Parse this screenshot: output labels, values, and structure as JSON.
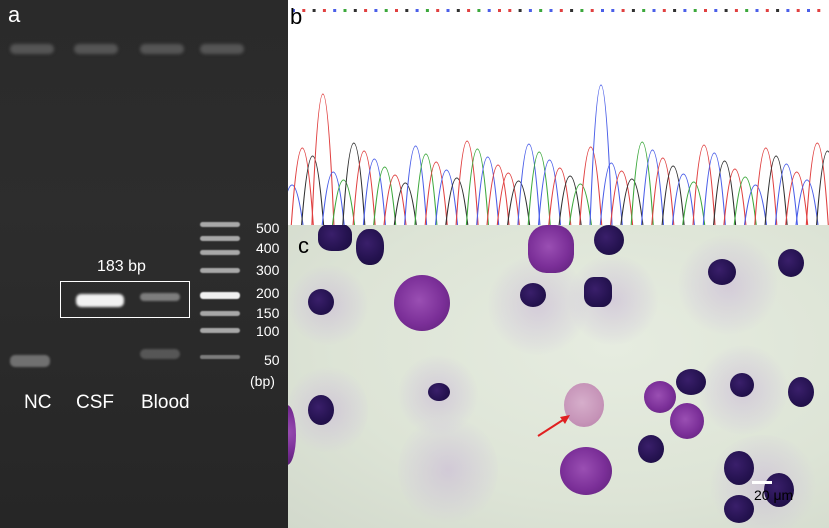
{
  "panels": {
    "a": {
      "letter": "a",
      "product_size": "183 bp",
      "lane_labels": [
        "NC",
        "CSF",
        "Blood"
      ],
      "ladder_sizes": [
        "500",
        "400",
        "300",
        "200",
        "150",
        "100",
        "50"
      ],
      "ladder_unit": "(bp)"
    },
    "b": {
      "letter": "b"
    },
    "c": {
      "letter": "c",
      "scale_label": "20 μm"
    }
  },
  "colors": {
    "gel_background": "#2b2b2b",
    "highlight_box": "#ffffff",
    "trace_a": "#3ca83c",
    "trace_c": "#4a5ee8",
    "trace_g": "#303030",
    "trace_t": "#e04040",
    "arrow": "#e02020",
    "stain_nucleus": "#24124f"
  },
  "icons": [
    "red-arrow-icon"
  ]
}
